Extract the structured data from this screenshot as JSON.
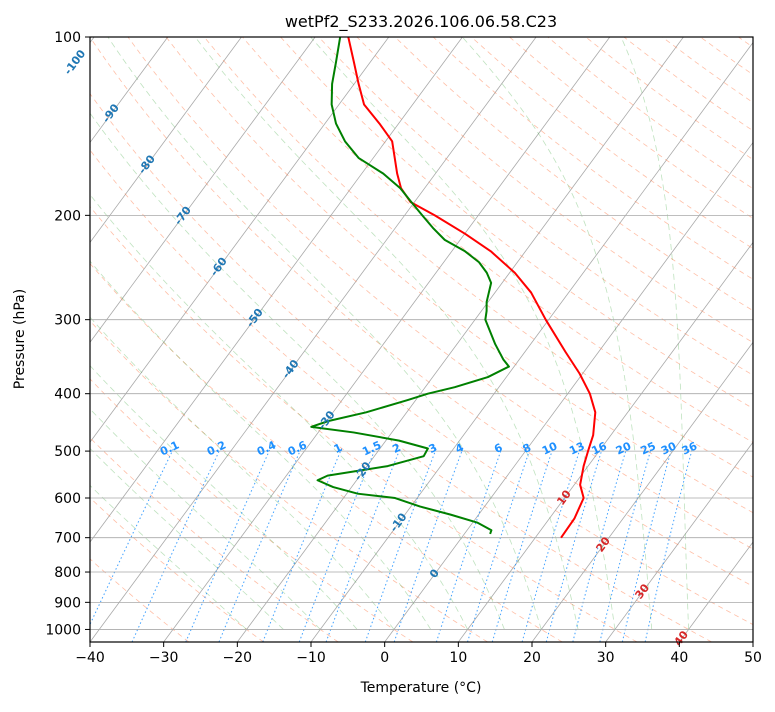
{
  "chart_data": {
    "type": "skew-t log-p",
    "title": "wetPf2_S233.2026.106.06.58.C23",
    "xlabel": "Temperature (°C)",
    "ylabel": "Pressure (hPa)",
    "xlim": [
      -40,
      50
    ],
    "ylim": [
      1050,
      100
    ],
    "y_scale": "log",
    "x_ticks": [
      -40,
      -30,
      -20,
      -10,
      0,
      10,
      20,
      30,
      40,
      50
    ],
    "y_ticks": [
      100,
      200,
      300,
      400,
      500,
      600,
      700,
      800,
      900,
      1000
    ],
    "grid": true,
    "series": [
      {
        "color": "#ff0000",
        "points": [
          {
            "p": 700,
            "t": 13.5
          },
          {
            "p": 650,
            "t": 13.4
          },
          {
            "p": 600,
            "t": 12.6
          },
          {
            "p": 570,
            "t": 10.8
          },
          {
            "p": 530,
            "t": 9.4
          },
          {
            "p": 500,
            "t": 8.5
          },
          {
            "p": 470,
            "t": 7.6
          },
          {
            "p": 430,
            "t": 5.6
          },
          {
            "p": 400,
            "t": 3.0
          },
          {
            "p": 370,
            "t": -0.4
          },
          {
            "p": 340,
            "t": -4.5
          },
          {
            "p": 300,
            "t": -10.4
          },
          {
            "p": 270,
            "t": -15.1
          },
          {
            "p": 250,
            "t": -19.3
          },
          {
            "p": 230,
            "t": -24.7
          },
          {
            "p": 215,
            "t": -29.9
          },
          {
            "p": 200,
            "t": -35.9
          },
          {
            "p": 190,
            "t": -40.5
          },
          {
            "p": 180,
            "t": -43.2
          },
          {
            "p": 170,
            "t": -45.2
          },
          {
            "p": 150,
            "t": -49.1
          },
          {
            "p": 140,
            "t": -52.6
          },
          {
            "p": 130,
            "t": -56.6
          },
          {
            "p": 120,
            "t": -59.4
          },
          {
            "p": 110,
            "t": -62.3
          },
          {
            "p": 100,
            "t": -65.5
          }
        ]
      },
      {
        "color": "#008000",
        "points": [
          {
            "p": 690,
            "t": 3.5
          },
          {
            "p": 680,
            "t": 3.3
          },
          {
            "p": 660,
            "t": 0.6
          },
          {
            "p": 640,
            "t": -3.8
          },
          {
            "p": 620,
            "t": -8.8
          },
          {
            "p": 600,
            "t": -13.0
          },
          {
            "p": 590,
            "t": -18.5
          },
          {
            "p": 575,
            "t": -22.5
          },
          {
            "p": 560,
            "t": -25.3
          },
          {
            "p": 550,
            "t": -24.4
          },
          {
            "p": 530,
            "t": -17.2
          },
          {
            "p": 510,
            "t": -13.3
          },
          {
            "p": 495,
            "t": -13.5
          },
          {
            "p": 480,
            "t": -18.2
          },
          {
            "p": 465,
            "t": -25.2
          },
          {
            "p": 455,
            "t": -31.5
          },
          {
            "p": 445,
            "t": -29.8
          },
          {
            "p": 430,
            "t": -25.5
          },
          {
            "p": 410,
            "t": -21.1
          },
          {
            "p": 400,
            "t": -19.0
          },
          {
            "p": 390,
            "t": -16.0
          },
          {
            "p": 375,
            "t": -12.5
          },
          {
            "p": 360,
            "t": -10.7
          },
          {
            "p": 350,
            "t": -12.2
          },
          {
            "p": 330,
            "t": -14.8
          },
          {
            "p": 300,
            "t": -18.6
          },
          {
            "p": 290,
            "t": -19.3
          },
          {
            "p": 280,
            "t": -20.2
          },
          {
            "p": 260,
            "t": -21.5
          },
          {
            "p": 250,
            "t": -23.1
          },
          {
            "p": 240,
            "t": -25.2
          },
          {
            "p": 230,
            "t": -28.2
          },
          {
            "p": 220,
            "t": -32.1
          },
          {
            "p": 210,
            "t": -34.9
          },
          {
            "p": 200,
            "t": -37.6
          },
          {
            "p": 190,
            "t": -40.4
          },
          {
            "p": 180,
            "t": -43.3
          },
          {
            "p": 170,
            "t": -47.1
          },
          {
            "p": 160,
            "t": -52.0
          },
          {
            "p": 150,
            "t": -55.5
          },
          {
            "p": 140,
            "t": -58.5
          },
          {
            "p": 130,
            "t": -61.0
          },
          {
            "p": 120,
            "t": -63.0
          },
          {
            "p": 110,
            "t": -64.7
          },
          {
            "p": 100,
            "t": -66.6
          }
        ]
      }
    ],
    "background": {
      "isotherm_colors": "#a9a9a9",
      "dry_adiabat_color": "#ff7f50",
      "moist_adiabat_color": "#2ca02c",
      "mixing_ratio_color": "#1e90ff",
      "mixing_ratio_labels": [
        "0.1",
        "0.2",
        "0.4",
        "0.6",
        "1",
        "1.5",
        "2",
        "3",
        "4",
        "6",
        "8",
        "10",
        "13",
        "16",
        "20",
        "25",
        "30",
        "36"
      ],
      "mixing_ratio_values": [
        0.1,
        0.2,
        0.4,
        0.6,
        1,
        1.5,
        2,
        3,
        4,
        6,
        8,
        10,
        13,
        16,
        20,
        25,
        30,
        36
      ],
      "isotherm_labels": [
        "-100",
        "-90",
        "-80",
        "-70",
        "-60",
        "-50",
        "-40",
        "-30",
        "-20",
        "-10",
        "0"
      ],
      "isotherm_label_values": [
        -100,
        -90,
        -80,
        -70,
        -60,
        -50,
        -40,
        -30,
        -20,
        -10,
        0
      ],
      "isotherm_label_color": "#1f77b4",
      "warm_isotherm_labels": [
        "10",
        "20",
        "30",
        "40"
      ],
      "warm_isotherm_label_values": [
        10,
        20,
        30,
        40
      ],
      "warm_isotherm_label_color": "#d62728"
    }
  }
}
